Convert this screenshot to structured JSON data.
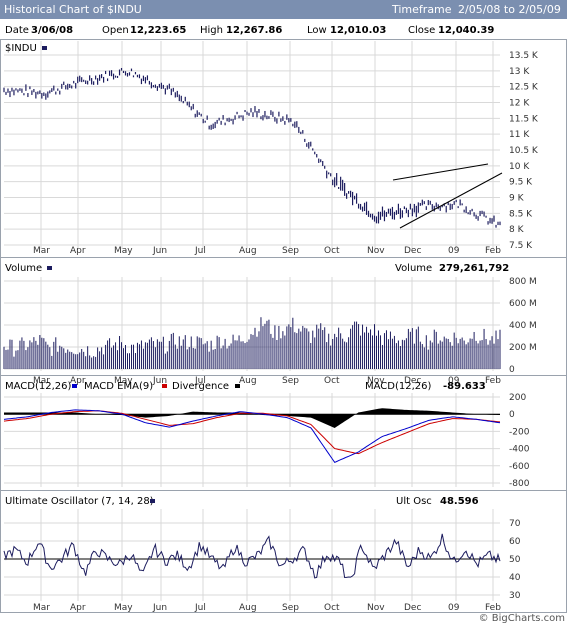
{
  "header": {
    "title": "Historical Chart of $INDU",
    "timeframe_label": "Timeframe",
    "date_range": "2/05/08 to 2/05/09"
  },
  "quote": {
    "date_label": "Date",
    "date": "3/06/08",
    "open_label": "Open",
    "open": "12,223.65",
    "high_label": "High",
    "high": "12,267.86",
    "low_label": "Low",
    "low": "12,010.03",
    "close_label": "Close",
    "close": "12,040.39"
  },
  "price_panel": {
    "symbol": "$INDU"
  },
  "volume_panel": {
    "title": "Volume",
    "readout_label": "Volume",
    "readout": "279,261,792"
  },
  "macd_panel": {
    "label_macd": "MACD(12,26)",
    "label_ema": "MACD EMA(9)",
    "label_div": "Divergence",
    "readout_label": "MACD(12,26)",
    "readout": "-89.633"
  },
  "uo_panel": {
    "title": "Ultimate Oscillator (7, 14, 28)",
    "readout_label": "Ult Osc",
    "readout": "48.596"
  },
  "credit": "© BigCharts.com",
  "colors": {
    "macd": "#0000cc",
    "ema": "#cc0000",
    "divergence": "#000000",
    "price": "#1c1c5e",
    "volume": "#1c1c5e",
    "grid": "#d9d9d9",
    "titlebar": "#7b8fb0"
  },
  "chart_data": [
    {
      "type": "line",
      "title": "Historical Chart of $INDU",
      "series": [
        {
          "name": "$INDU",
          "values_note_months": "monthly approx",
          "x": [
            "Feb 08",
            "Mar",
            "Apr",
            "May",
            "Jun",
            "Jul",
            "Aug",
            "Sep",
            "Oct",
            "Nov",
            "Dec",
            "09",
            "Feb 09"
          ],
          "values": [
            12400,
            12300,
            12700,
            13000,
            12400,
            11300,
            11700,
            11400,
            9500,
            8400,
            8700,
            8800,
            8100
          ]
        }
      ],
      "yticks": [
        "7.5 K",
        "8 K",
        "8.5 K",
        "9 K",
        "9.5 K",
        "10 K",
        "10.5 K",
        "11 K",
        "11.5 K",
        "12 K",
        "12.5 K",
        "13 K",
        "13.5 K"
      ],
      "ylim": [
        7500,
        13500
      ],
      "xticks": [
        "Mar",
        "Apr",
        "May",
        "Jun",
        "Jul",
        "Aug",
        "Sep",
        "Oct",
        "Nov",
        "Dec",
        "09",
        "Feb"
      ]
    },
    {
      "type": "bar",
      "title": "Volume",
      "series": [
        {
          "name": "Volume",
          "values": [
            220,
            190,
            210,
            230,
            260,
            180,
            220,
            200,
            190,
            180,
            170,
            200,
            210,
            240,
            200,
            190,
            230,
            210,
            220,
            260,
            240,
            250,
            230,
            220,
            270,
            240,
            260,
            310,
            370,
            430,
            320,
            360,
            400,
            350,
            300,
            350,
            280,
            320,
            300,
            400,
            330,
            360,
            280,
            290,
            260,
            300,
            310,
            250,
            300,
            270,
            290,
            250,
            320,
            300,
            260,
            280
          ]
        }
      ],
      "yticks": [
        "0",
        "200 M",
        "400 M",
        "600 M",
        "800 M"
      ],
      "ylim": [
        0,
        800
      ],
      "xticks": [
        "Mar",
        "Apr",
        "May",
        "Jun",
        "Jul",
        "Aug",
        "Sep",
        "Oct",
        "Nov",
        "Dec",
        "09",
        "Feb"
      ]
    },
    {
      "type": "line",
      "title": "MACD(12,26)",
      "series": [
        {
          "name": "MACD(12,26)",
          "values": [
            -60,
            -30,
            20,
            50,
            40,
            0,
            -100,
            -150,
            -80,
            -20,
            30,
            0,
            -40,
            -160,
            -560,
            -440,
            -260,
            -170,
            -70,
            -30,
            -60,
            -100
          ]
        },
        {
          "name": "MACD EMA(9)",
          "values": [
            -80,
            -50,
            0,
            30,
            40,
            10,
            -60,
            -130,
            -110,
            -40,
            10,
            10,
            -20,
            -120,
            -400,
            -460,
            -330,
            -220,
            -110,
            -50,
            -60,
            -90
          ]
        },
        {
          "name": "Divergence",
          "values": [
            20,
            20,
            20,
            20,
            0,
            -10,
            -40,
            -20,
            30,
            20,
            20,
            -10,
            -20,
            -40,
            -160,
            20,
            70,
            50,
            40,
            20,
            0,
            -10
          ]
        }
      ],
      "yticks": [
        "-800",
        "-600",
        "-400",
        "-200",
        "0",
        "200"
      ],
      "ylim": [
        -800,
        200
      ],
      "xticks": [
        "Mar",
        "Apr",
        "May",
        "Jun",
        "Jul",
        "Aug",
        "Sep",
        "Oct",
        "Nov",
        "Dec",
        "09",
        "Feb"
      ]
    },
    {
      "type": "line",
      "title": "Ultimate Oscillator (7, 14, 28)",
      "series": [
        {
          "name": "Ult Osc",
          "values": [
            52,
            55,
            48,
            60,
            45,
            50,
            58,
            42,
            55,
            50,
            47,
            53,
            40,
            56,
            49,
            52,
            45,
            58,
            50,
            44,
            57,
            48,
            52,
            60,
            46,
            50,
            55,
            41,
            53,
            49,
            36,
            58,
            44,
            52,
            60,
            45,
            55,
            50,
            62,
            48,
            56,
            47,
            52,
            49
          ]
        }
      ],
      "yticks": [
        "30",
        "40",
        "50",
        "60",
        "70"
      ],
      "ylim": [
        30,
        70
      ],
      "xticks": [
        "Mar",
        "Apr",
        "May",
        "Jun",
        "Jul",
        "Aug",
        "Sep",
        "Oct",
        "Nov",
        "Dec",
        "09",
        "Feb"
      ]
    }
  ]
}
